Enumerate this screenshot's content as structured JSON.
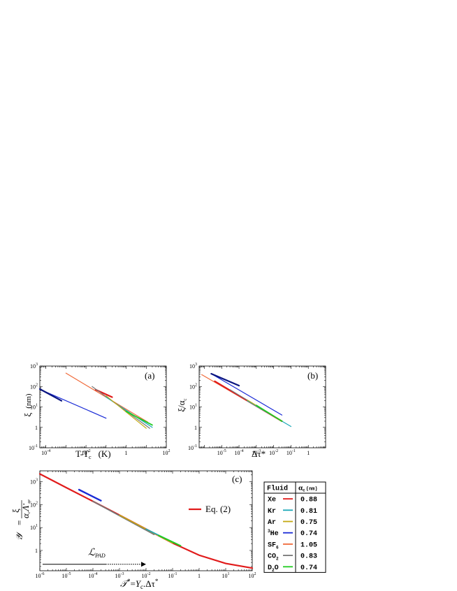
{
  "chart_data": [
    {
      "id": "a",
      "type": "line",
      "panel_label": "(a)",
      "xlabel": "T-T",
      "xlabel_sub": "c",
      "xlabel_unit": "(K)",
      "ylabel": "ξ",
      "ylabel_unit": "(nm)",
      "xscale": "log",
      "yscale": "log",
      "xlim": [
        5e-05,
        100
      ],
      "ylim": [
        0.1,
        1000
      ],
      "xticks": [
        {
          "v": 0.0001,
          "m": "10",
          "e": "-4"
        },
        {
          "v": 0.01,
          "m": "10",
          "e": "-2"
        },
        {
          "v": 1,
          "m": "1",
          "e": ""
        },
        {
          "v": 100,
          "m": "10",
          "e": "2"
        }
      ],
      "yticks": [
        {
          "v": 0.1,
          "m": "10",
          "e": "-1"
        },
        {
          "v": 1,
          "m": "1",
          "e": ""
        },
        {
          "v": 10,
          "m": "10",
          "e": "1"
        },
        {
          "v": 100,
          "m": "10",
          "e": "2"
        },
        {
          "v": 1000,
          "m": "10",
          "e": "3"
        }
      ],
      "series": [
        {
          "key": "he3",
          "color": "#1a2bd6",
          "width": 1.2,
          "points": [
            [
              5.5e-05,
              70
            ],
            [
              0.1,
              2.8
            ]
          ]
        },
        {
          "key": "he3b",
          "color": "#0a1580",
          "width": 2.2,
          "points": [
            [
              5e-05,
              75
            ],
            [
              0.0006,
              20
            ]
          ]
        },
        {
          "key": "sf6",
          "color": "#f06a3a",
          "width": 1.2,
          "points": [
            [
              0.001,
              450
            ],
            [
              12,
              1.8
            ]
          ]
        },
        {
          "key": "xe",
          "color": "#e11b1b",
          "width": 2.2,
          "points": [
            [
              0.03,
              70
            ],
            [
              0.2,
              30
            ]
          ]
        },
        {
          "key": "co2",
          "color": "#777777",
          "width": 1.2,
          "points": [
            [
              0.02,
              100
            ],
            [
              15,
              0.9
            ]
          ]
        },
        {
          "key": "kr",
          "color": "#1aa8b8",
          "width": 1.2,
          "points": [
            [
              0.1,
              30
            ],
            [
              20,
              1.0
            ]
          ]
        },
        {
          "key": "ar",
          "color": "#c4a912",
          "width": 1.2,
          "points": [
            [
              0.1,
              35
            ],
            [
              10,
              0.9
            ]
          ]
        },
        {
          "key": "d2o",
          "color": "#22cc22",
          "width": 1.8,
          "points": [
            [
              1,
              6
            ],
            [
              20,
              1.3
            ]
          ]
        }
      ]
    },
    {
      "id": "b",
      "type": "line",
      "panel_label": "(b)",
      "xlabel": "Δτ*",
      "ylabel": "ξ/α",
      "ylabel_sub": "c",
      "xscale": "log",
      "yscale": "log",
      "xlim": [
        5e-07,
        10
      ],
      "ylim": [
        0.1,
        1000
      ],
      "xticks": [
        {
          "v": 1e-05,
          "m": "10",
          "e": "-5"
        },
        {
          "v": 0.0001,
          "m": "10",
          "e": "-4"
        },
        {
          "v": 0.001,
          "m": "10",
          "e": "-3"
        },
        {
          "v": 0.01,
          "m": "10",
          "e": "-2"
        },
        {
          "v": 0.1,
          "m": "10",
          "e": "-1"
        },
        {
          "v": 1,
          "m": "1",
          "e": ""
        }
      ],
      "yticks": [
        {
          "v": 0.1,
          "m": "10",
          "e": "-1"
        },
        {
          "v": 1,
          "m": "1",
          "e": ""
        },
        {
          "v": 10,
          "m": "10",
          "e": "1"
        },
        {
          "v": 100,
          "m": "10",
          "e": "2"
        },
        {
          "v": 1000,
          "m": "10",
          "e": "3"
        }
      ],
      "series": [
        {
          "key": "he3",
          "color": "#1a2bd6",
          "width": 1.2,
          "points": [
            [
              2.5e-06,
              420
            ],
            [
              0.03,
              4
            ]
          ]
        },
        {
          "key": "he3b",
          "color": "#0a1580",
          "width": 2.2,
          "points": [
            [
              2.5e-06,
              420
            ],
            [
              0.0001,
              110
            ]
          ]
        },
        {
          "key": "sf6",
          "color": "#f06a3a",
          "width": 1.2,
          "points": [
            [
              7e-07,
              380
            ],
            [
              0.03,
              2
            ]
          ]
        },
        {
          "key": "xe",
          "color": "#e11b1b",
          "width": 2.2,
          "points": [
            [
              4e-06,
              180
            ],
            [
              0.03,
              2
            ]
          ]
        },
        {
          "key": "co2",
          "color": "#777777",
          "width": 1.2,
          "points": [
            [
              3e-05,
              70
            ],
            [
              0.03,
              2
            ]
          ]
        },
        {
          "key": "kr",
          "color": "#1aa8b8",
          "width": 1.2,
          "points": [
            [
              0.0003,
              20
            ],
            [
              0.1,
              1.1
            ]
          ]
        },
        {
          "key": "ar",
          "color": "#c4a912",
          "width": 1.2,
          "points": [
            [
              0.0003,
              22
            ],
            [
              0.03,
              2
            ]
          ]
        },
        {
          "key": "d2o",
          "color": "#22cc22",
          "width": 1.8,
          "points": [
            [
              0.001,
              12
            ],
            [
              0.03,
              2
            ]
          ]
        }
      ]
    },
    {
      "id": "c",
      "type": "line",
      "panel_label": "(c)",
      "xscale": "log",
      "yscale": "log",
      "xlim": [
        1e-06,
        100
      ],
      "ylim": [
        0.13,
        3000
      ],
      "xticks": [
        {
          "v": 1e-06,
          "m": "10",
          "e": "-6"
        },
        {
          "v": 1e-05,
          "m": "10",
          "e": "-5"
        },
        {
          "v": 0.0001,
          "m": "10",
          "e": "-4"
        },
        {
          "v": 0.001,
          "m": "10",
          "e": "-3"
        },
        {
          "v": 0.01,
          "m": "10",
          "e": "-2"
        },
        {
          "v": 0.1,
          "m": "10",
          "e": "-1"
        },
        {
          "v": 1,
          "m": "1",
          "e": ""
        },
        {
          "v": 10,
          "m": "10",
          "e": "1"
        },
        {
          "v": 100,
          "m": "10",
          "e": "2"
        }
      ],
      "yticks": [
        {
          "v": 1,
          "m": "1",
          "e": ""
        },
        {
          "v": 10,
          "m": "10",
          "e": "1"
        },
        {
          "v": 100,
          "m": "10",
          "e": "2"
        },
        {
          "v": 1000,
          "m": "10",
          "e": "3"
        }
      ],
      "legend_entry": "Eq. (2)",
      "arrow_label": "PAD",
      "arrow_range": [
        1e-06,
        0.01
      ],
      "arrow_solid_end": 0.0003,
      "arrow_y": 0.25,
      "series": [
        {
          "key": "eq2",
          "color": "#e11b1b",
          "width": 2.2,
          "points": [
            [
              1e-06,
              2200
            ],
            [
              1e-05,
              550
            ],
            [
              0.0001,
              140
            ],
            [
              0.001,
              35
            ],
            [
              0.01,
              8.6
            ],
            [
              0.1,
              2.1
            ],
            [
              1,
              0.62
            ],
            [
              10,
              0.27
            ],
            [
              100,
              0.17
            ]
          ]
        },
        {
          "key": "he3",
          "color": "#1a2bd6",
          "width": 2.4,
          "points": [
            [
              3e-05,
              450
            ],
            [
              0.0002,
              150
            ]
          ]
        },
        {
          "key": "co2",
          "color": "#777777",
          "width": 1.8,
          "points": [
            [
              0.0001,
              140
            ],
            [
              0.02,
              5
            ]
          ]
        },
        {
          "key": "ar",
          "color": "#c4a912",
          "width": 1.6,
          "points": [
            [
              0.001,
              35
            ],
            [
              0.1,
              2.1
            ]
          ]
        },
        {
          "key": "kr",
          "color": "#1aa8b8",
          "width": 1.6,
          "points": [
            [
              0.01,
              8.6
            ],
            [
              0.2,
              1.6
            ]
          ]
        },
        {
          "key": "d2o",
          "color": "#22cc22",
          "width": 2.0,
          "points": [
            [
              0.03,
              4.5
            ],
            [
              0.2,
              1.6
            ]
          ]
        }
      ]
    }
  ],
  "table": {
    "header_fluid": "Fluid",
    "header_alpha": "α",
    "header_alpha_sub": "c",
    "header_alpha_unit": "(nm)",
    "rows": [
      {
        "fluid": "Xe",
        "sup": "",
        "sub": "",
        "color": "#e11b1b",
        "value": "0.88"
      },
      {
        "fluid": "Kr",
        "sup": "",
        "sub": "",
        "color": "#1aa8b8",
        "value": "0.81"
      },
      {
        "fluid": "Ar",
        "sup": "",
        "sub": "",
        "color": "#c4a912",
        "value": "0.75"
      },
      {
        "fluid": "He",
        "sup": "3",
        "sub": "",
        "color": "#1a2bd6",
        "value": "0.74"
      },
      {
        "fluid": "SF",
        "sup": "",
        "sub": "6",
        "color": "#f06a3a",
        "value": "1.05"
      },
      {
        "fluid": "CO",
        "sup": "",
        "sub": "2",
        "color": "#777777",
        "value": "0.83"
      },
      {
        "fluid": "D",
        "sup": "",
        "sub": "2",
        "tail": "O",
        "color": "#22cc22",
        "value": "0.74"
      }
    ]
  }
}
